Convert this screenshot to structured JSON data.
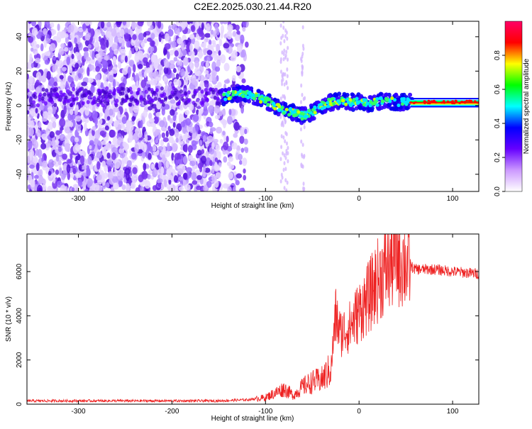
{
  "chart_data": [
    {
      "type": "heatmap",
      "title": "C2E2.2025.030.21.44.R20",
      "xlabel": "Height of straight line (km)",
      "ylabel": "Frequency (Hz)",
      "xlim": [
        -355,
        128
      ],
      "ylim": [
        -50,
        49
      ],
      "x_ticks": [
        -300,
        -200,
        -100,
        0,
        100
      ],
      "y_ticks": [
        -40,
        -20,
        0,
        20,
        40
      ],
      "colorbar": {
        "label": "Normalized spectral amplitude",
        "range": [
          0,
          1
        ],
        "ticks": [
          "0.0",
          "0.2",
          "0.4",
          "0.6",
          "0.8"
        ],
        "colors": [
          "#ffffff",
          "#cc99ff",
          "#6600ff",
          "#0000ff",
          "#00ffff",
          "#00ff00",
          "#ffff00",
          "#ff0000",
          "#ff0066"
        ]
      },
      "ridge": {
        "x": [
          -145,
          -130,
          -115,
          -100,
          -90,
          -80,
          -70,
          -60,
          -50,
          -40,
          -30,
          -20,
          -10,
          0,
          10,
          20,
          30,
          40,
          55,
          128
        ],
        "y": [
          5,
          7,
          6,
          3,
          0,
          -3,
          -4,
          -6,
          -4,
          0,
          2,
          3,
          2,
          2,
          1,
          2,
          3,
          2,
          2,
          2
        ]
      }
    },
    {
      "type": "line",
      "xlabel": "Height of straight line (km)",
      "ylabel": "SNR (10 * v/v)",
      "xlim": [
        -355,
        128
      ],
      "ylim": [
        0,
        7700
      ],
      "x_ticks": [
        -300,
        -200,
        -100,
        0,
        100
      ],
      "y_ticks": [
        0,
        2000,
        4000,
        6000
      ],
      "color": "#ee2222",
      "envelope": {
        "x": [
          -355,
          -150,
          -120,
          -100,
          -90,
          -80,
          -70,
          -60,
          -50,
          -40,
          -30,
          -25,
          -20,
          -10,
          0,
          10,
          20,
          30,
          40,
          50,
          60,
          80,
          100,
          128
        ],
        "y": [
          150,
          150,
          200,
          300,
          500,
          700,
          400,
          800,
          1000,
          1100,
          1600,
          4000,
          3200,
          3500,
          4200,
          4800,
          5600,
          6200,
          6700,
          6400,
          6100,
          6100,
          6000,
          5900
        ]
      }
    }
  ]
}
